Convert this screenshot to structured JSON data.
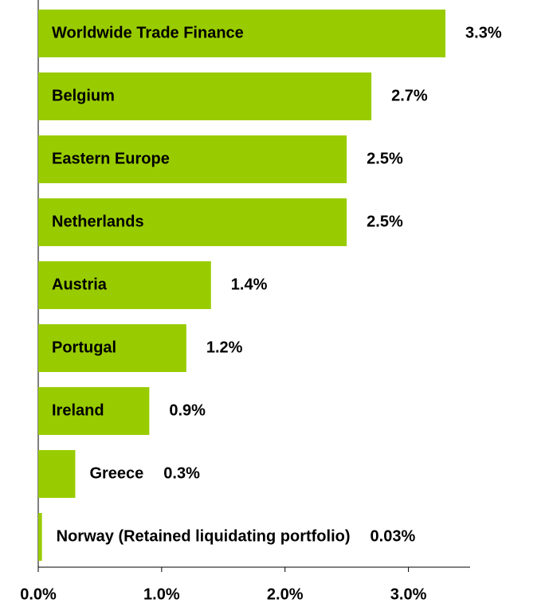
{
  "chart_data": {
    "type": "bar",
    "orientation": "horizontal",
    "categories": [
      "Worldwide Trade Finance",
      "Belgium",
      "Eastern  Europe",
      "Netherlands",
      "Austria",
      "Portugal",
      "Ireland",
      "Greece",
      "Norway  (Retained liquidating portfolio)"
    ],
    "values": [
      3.3,
      2.7,
      2.5,
      2.5,
      1.4,
      1.2,
      0.9,
      0.3,
      0.03
    ],
    "value_labels": [
      "3.3%",
      "2.7%",
      "2.5%",
      "2.5%",
      "1.4%",
      "1.2%",
      "0.9%",
      "0.3%",
      "0.03%"
    ],
    "color": "#99cc00",
    "xlim": [
      0,
      3.5
    ],
    "xticks": [
      {
        "value": 0,
        "label": "0.0%"
      },
      {
        "value": 1,
        "label": "1.0%"
      },
      {
        "value": 2,
        "label": "2.0%"
      },
      {
        "value": 3,
        "label": "3.0%"
      }
    ],
    "grid": false
  }
}
